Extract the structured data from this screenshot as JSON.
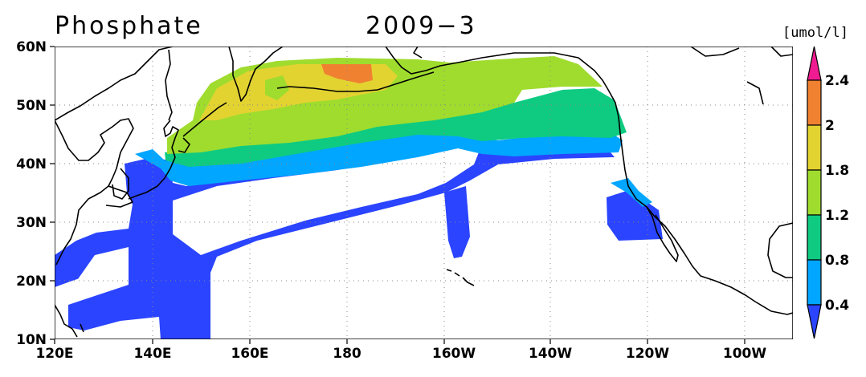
{
  "title": {
    "variable": "Phosphate",
    "date": "2009−3"
  },
  "units": "[umol/l]",
  "map": {
    "projection": "plate carree",
    "lon_range": [
      "120E",
      "90W"
    ],
    "lat_range": [
      "10N",
      "60N"
    ],
    "x_ticks": [
      "120E",
      "140E",
      "160E",
      "180",
      "160W",
      "140W",
      "120W",
      "100W"
    ],
    "y_ticks": [
      "60N",
      "50N",
      "40N",
      "30N",
      "20N",
      "10N"
    ],
    "grid": "dotted",
    "land_fill": "#ffffff",
    "coast_color": "#000000"
  },
  "colorbar": {
    "levels": [
      "0.4",
      "0.8",
      "1.2",
      "1.8",
      "2",
      "2.4"
    ],
    "bins": [
      {
        "range": "<0.4",
        "color": "#2a44ff"
      },
      {
        "range": "0.4-0.8",
        "color": "#00a6ff"
      },
      {
        "range": "0.8-1.2",
        "color": "#0fcb82"
      },
      {
        "range": "1.2-1.8",
        "color": "#9fdc2e"
      },
      {
        "range": "1.8-2",
        "color": "#e2d331"
      },
      {
        "range": "2-2.4",
        "color": "#f08131"
      },
      {
        "range": ">2.4",
        "color": "#f01b90"
      }
    ]
  }
}
